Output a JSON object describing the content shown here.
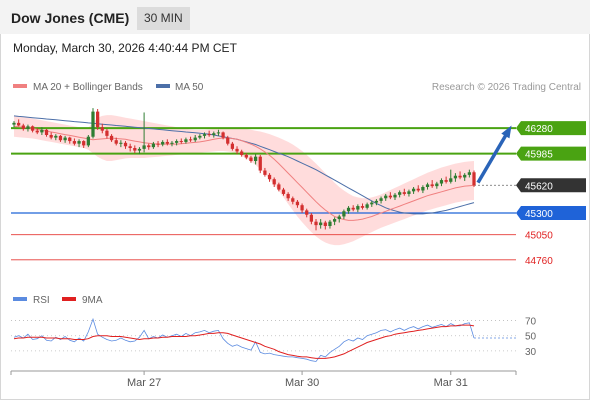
{
  "header": {
    "instrument": "Dow Jones (CME)",
    "timeframe": "30 MIN",
    "datetime": "Monday, March 30, 2026 4:40:44 PM CET"
  },
  "legend": {
    "ma20_label": "MA 20 + Bollinger Bands",
    "ma50_label": "MA 50",
    "credit": "Research © 2026 Trading Central"
  },
  "rsi_legend": {
    "rsi_label": "RSI",
    "ma_label": "9MA"
  },
  "colors": {
    "green": "#4aa312",
    "blue": "#1f63d8",
    "red": "#e53935",
    "candle_red": "#d32f2f",
    "candle_green": "#2e7d32",
    "band": "#ffd6d6",
    "ma20": "#f08080",
    "ma50": "#4c6fa8",
    "rsi": "#5b8be0",
    "rsi_ma": "#e02020",
    "arrow": "#2a64b8",
    "last": "#333333"
  },
  "chart_data": {
    "type": "candlestick",
    "x_ticks": [
      "Mar 27",
      "Mar 30",
      "Mar 31"
    ],
    "price_range": [
      44550,
      46650
    ],
    "levels": [
      {
        "value": 46280,
        "label": "46280",
        "style": "resistance"
      },
      {
        "value": 45985,
        "label": "45985",
        "style": "resistance"
      },
      {
        "value": 45620,
        "label": "45620",
        "style": "last"
      },
      {
        "value": 45300,
        "label": "45300",
        "style": "pivot"
      },
      {
        "value": 45050,
        "label": "45050",
        "style": "support"
      },
      {
        "value": 44760,
        "label": "44760",
        "style": "support"
      }
    ],
    "candles": [
      [
        46320,
        46360,
        46290,
        46340
      ],
      [
        46340,
        46380,
        46300,
        46310
      ],
      [
        46310,
        46330,
        46250,
        46270
      ],
      [
        46270,
        46320,
        46240,
        46300
      ],
      [
        46300,
        46310,
        46230,
        46250
      ],
      [
        46250,
        46280,
        46210,
        46230
      ],
      [
        46230,
        46290,
        46200,
        46260
      ],
      [
        46260,
        46270,
        46180,
        46200
      ],
      [
        46200,
        46230,
        46150,
        46170
      ],
      [
        46170,
        46210,
        46140,
        46190
      ],
      [
        46190,
        46200,
        46120,
        46140
      ],
      [
        46140,
        46190,
        46110,
        46170
      ],
      [
        46170,
        46180,
        46100,
        46130
      ],
      [
        46130,
        46160,
        46080,
        46100
      ],
      [
        46100,
        46150,
        46060,
        46130
      ],
      [
        46130,
        46140,
        46050,
        46080
      ],
      [
        46080,
        46200,
        46060,
        46180
      ],
      [
        46180,
        46510,
        46160,
        46470
      ],
      [
        46470,
        46500,
        46260,
        46290
      ],
      [
        46290,
        46330,
        46220,
        46250
      ],
      [
        46250,
        46270,
        46160,
        46190
      ],
      [
        46190,
        46210,
        46120,
        46140
      ],
      [
        46140,
        46170,
        46080,
        46100
      ],
      [
        46100,
        46140,
        46060,
        46110
      ],
      [
        46110,
        46130,
        46040,
        46070
      ],
      [
        46070,
        46100,
        46010,
        46050
      ],
      [
        46050,
        46080,
        45990,
        46020
      ],
      [
        46020,
        46060,
        45980,
        46040
      ],
      [
        46040,
        46460,
        46000,
        46080
      ],
      [
        46080,
        46100,
        46030,
        46060
      ],
      [
        46060,
        46120,
        46040,
        46100
      ],
      [
        46100,
        46130,
        46060,
        46090
      ],
      [
        46090,
        46140,
        46070,
        46120
      ],
      [
        46120,
        46150,
        46080,
        46100
      ],
      [
        46100,
        46130,
        46070,
        46110
      ],
      [
        46110,
        46150,
        46080,
        46130
      ],
      [
        46130,
        46160,
        46100,
        46120
      ],
      [
        46120,
        46170,
        46100,
        46150
      ],
      [
        46150,
        46180,
        46120,
        46140
      ],
      [
        46140,
        46200,
        46120,
        46170
      ],
      [
        46170,
        46210,
        46150,
        46190
      ],
      [
        46190,
        46230,
        46160,
        46210
      ],
      [
        46210,
        46250,
        46180,
        46200
      ],
      [
        46200,
        46240,
        46170,
        46220
      ],
      [
        46220,
        46260,
        46190,
        46230
      ],
      [
        46230,
        46240,
        46150,
        46170
      ],
      [
        46170,
        46190,
        46080,
        46100
      ],
      [
        46100,
        46120,
        46020,
        46040
      ],
      [
        46040,
        46070,
        45980,
        46010
      ],
      [
        46010,
        46030,
        45950,
        45970
      ],
      [
        45970,
        45990,
        45920,
        45940
      ],
      [
        45940,
        45960,
        45880,
        45900
      ],
      [
        45900,
        45980,
        45860,
        45950
      ],
      [
        45950,
        45970,
        45760,
        45790
      ],
      [
        45790,
        45820,
        45720,
        45740
      ],
      [
        45740,
        45760,
        45660,
        45690
      ],
      [
        45690,
        45710,
        45600,
        45630
      ],
      [
        45630,
        45650,
        45550,
        45570
      ],
      [
        45570,
        45590,
        45500,
        45520
      ],
      [
        45520,
        45540,
        45440,
        45470
      ],
      [
        45470,
        45490,
        45400,
        45430
      ],
      [
        45430,
        45450,
        45360,
        45390
      ],
      [
        45390,
        45410,
        45300,
        45330
      ],
      [
        45330,
        45350,
        45250,
        45280
      ],
      [
        45280,
        45300,
        45170,
        45200
      ],
      [
        45200,
        45230,
        45100,
        45160
      ],
      [
        45160,
        45230,
        45120,
        45190
      ],
      [
        45190,
        45210,
        45110,
        45150
      ],
      [
        45150,
        45220,
        45120,
        45200
      ],
      [
        45200,
        45250,
        45160,
        45230
      ],
      [
        45230,
        45280,
        45190,
        45260
      ],
      [
        45260,
        45340,
        45230,
        45320
      ],
      [
        45320,
        45380,
        45290,
        45360
      ],
      [
        45360,
        45390,
        45320,
        45340
      ],
      [
        45340,
        45400,
        45310,
        45380
      ],
      [
        45380,
        45410,
        45340,
        45360
      ],
      [
        45360,
        45420,
        45340,
        45400
      ],
      [
        45400,
        45440,
        45370,
        45420
      ],
      [
        45420,
        45460,
        45390,
        45440
      ],
      [
        45440,
        45490,
        45410,
        45470
      ],
      [
        45470,
        45520,
        45440,
        45500
      ],
      [
        45500,
        45540,
        45460,
        45480
      ],
      [
        45480,
        45530,
        45450,
        45510
      ],
      [
        45510,
        45560,
        45480,
        45540
      ],
      [
        45540,
        45580,
        45500,
        45520
      ],
      [
        45520,
        45570,
        45490,
        45550
      ],
      [
        45550,
        45600,
        45520,
        45580
      ],
      [
        45580,
        45620,
        45540,
        45560
      ],
      [
        45560,
        45620,
        45530,
        45600
      ],
      [
        45600,
        45650,
        45570,
        45630
      ],
      [
        45630,
        45680,
        45590,
        45610
      ],
      [
        45610,
        45660,
        45580,
        45640
      ],
      [
        45640,
        45700,
        45610,
        45680
      ],
      [
        45680,
        45720,
        45640,
        45660
      ],
      [
        45660,
        45800,
        45640,
        45700
      ],
      [
        45700,
        45760,
        45660,
        45730
      ],
      [
        45730,
        45780,
        45690,
        45710
      ],
      [
        45710,
        45760,
        45670,
        45740
      ],
      [
        45740,
        45800,
        45710,
        45770
      ],
      [
        45770,
        45790,
        45600,
        45620
      ]
    ],
    "ma20": [
      46300,
      46295,
      46290,
      46285,
      46275,
      46265,
      46255,
      46245,
      46235,
      46225,
      46215,
      46205,
      46195,
      46185,
      46175,
      46165,
      46155,
      46145,
      46150,
      46155,
      46160,
      46165,
      46160,
      46155,
      46150,
      46140,
      46130,
      46120,
      46110,
      46105,
      46100,
      46095,
      46095,
      46095,
      46095,
      46095,
      46100,
      46105,
      46110,
      46115,
      46120,
      46130,
      46140,
      46150,
      46160,
      46165,
      46165,
      46160,
      46150,
      46135,
      46115,
      46095,
      46070,
      46040,
      46005,
      45965,
      45920,
      45870,
      45815,
      45760,
      45705,
      45650,
      45595,
      45540,
      45485,
      45430,
      45380,
      45335,
      45295,
      45260,
      45240,
      45225,
      45215,
      45215,
      45220,
      45230,
      45245,
      45260,
      45280,
      45300,
      45320,
      45340,
      45360,
      45380,
      45400,
      45420,
      45440,
      45460,
      45480,
      45500,
      45515,
      45530,
      45545,
      45560,
      45575,
      45590,
      45600,
      45610,
      45615,
      45620
    ],
    "bb_upper": [
      46420,
      46415,
      46410,
      46400,
      46390,
      46380,
      46370,
      46360,
      46350,
      46340,
      46330,
      46320,
      46310,
      46300,
      46290,
      46280,
      46285,
      46340,
      46400,
      46420,
      46430,
      46430,
      46420,
      46410,
      46400,
      46390,
      46380,
      46370,
      46360,
      46350,
      46340,
      46330,
      46320,
      46310,
      46300,
      46290,
      46280,
      46270,
      46265,
      46260,
      46260,
      46260,
      46265,
      46270,
      46275,
      46280,
      46285,
      46285,
      46280,
      46275,
      46270,
      46260,
      46250,
      46240,
      46225,
      46210,
      46190,
      46170,
      46145,
      46120,
      46090,
      46055,
      46015,
      45970,
      45920,
      45870,
      45815,
      45760,
      45705,
      45650,
      45600,
      45560,
      45525,
      45495,
      45480,
      45470,
      45470,
      45480,
      45495,
      45515,
      45540,
      45565,
      45590,
      45615,
      45640,
      45665,
      45690,
      45715,
      45740,
      45765,
      45785,
      45805,
      45825,
      45840,
      45855,
      45870,
      45880,
      45890,
      45895,
      45900
    ],
    "bb_lower": [
      46180,
      46175,
      46170,
      46165,
      46160,
      46150,
      46140,
      46130,
      46120,
      46110,
      46100,
      46090,
      46080,
      46070,
      46060,
      46050,
      46030,
      45990,
      45950,
      45920,
      45900,
      45900,
      45910,
      45920,
      45930,
      45935,
      45935,
      45935,
      45935,
      45940,
      45945,
      45950,
      45955,
      45960,
      45965,
      45970,
      45975,
      45980,
      45985,
      45990,
      45995,
      46000,
      46005,
      46010,
      46015,
      46015,
      46010,
      46000,
      45985,
      45960,
      45930,
      45895,
      45855,
      45805,
      45750,
      45690,
      45625,
      45555,
      45480,
      45405,
      45330,
      45260,
      45195,
      45135,
      45080,
      45030,
      44990,
      44960,
      44940,
      44930,
      44930,
      44940,
      44955,
      44975,
      45000,
      45025,
      45055,
      45080,
      45105,
      45130,
      45150,
      45170,
      45190,
      45210,
      45230,
      45250,
      45270,
      45290,
      45310,
      45330,
      45345,
      45360,
      45375,
      45390,
      45405,
      45420,
      45430,
      45440,
      45445,
      45450
    ],
    "ma50": [
      46420,
      46415,
      46410,
      46405,
      46400,
      46395,
      46390,
      46385,
      46380,
      46375,
      46370,
      46365,
      46360,
      46355,
      46350,
      46345,
      46340,
      46335,
      46330,
      46325,
      46320,
      46315,
      46310,
      46305,
      46300,
      46295,
      46290,
      46285,
      46280,
      46275,
      46270,
      46265,
      46260,
      46255,
      46250,
      46245,
      46240,
      46235,
      46230,
      46225,
      46220,
      46215,
      46210,
      46200,
      46190,
      46180,
      46170,
      46160,
      46150,
      46135,
      46120,
      46105,
      46090,
      46070,
      46050,
      46030,
      46010,
      45990,
      45970,
      45950,
      45925,
      45900,
      45875,
      45850,
      45825,
      45800,
      45770,
      45740,
      45710,
      45680,
      45650,
      45620,
      45590,
      45560,
      45530,
      45500,
      45470,
      45440,
      45410,
      45385,
      45360,
      45340,
      45325,
      45310,
      45300,
      45295,
      45290,
      45290,
      45290,
      45295,
      45300,
      45310,
      45320,
      45330,
      45345,
      45360,
      45375,
      45390,
      45405,
      45420
    ],
    "rsi_ticks": [
      70,
      50,
      30
    ],
    "rsi": [
      48,
      50,
      47,
      52,
      45,
      46,
      50,
      44,
      43,
      48,
      45,
      49,
      44,
      42,
      47,
      43,
      55,
      72,
      52,
      48,
      45,
      43,
      44,
      47,
      44,
      42,
      43,
      48,
      57,
      46,
      49,
      47,
      51,
      48,
      50,
      52,
      49,
      53,
      50,
      54,
      55,
      57,
      54,
      56,
      57,
      46,
      40,
      36,
      38,
      35,
      33,
      31,
      42,
      28,
      26,
      27,
      25,
      24,
      23,
      22,
      22,
      21,
      20,
      19,
      17,
      16,
      24,
      22,
      28,
      32,
      36,
      42,
      45,
      43,
      47,
      45,
      50,
      52,
      54,
      57,
      58,
      55,
      58,
      60,
      57,
      60,
      62,
      59,
      62,
      64,
      61,
      63,
      65,
      62,
      66,
      63,
      63,
      66,
      67,
      47
    ],
    "rsi_ma": [
      46,
      47,
      47,
      48,
      48,
      48,
      48,
      47,
      47,
      47,
      46,
      46,
      46,
      45,
      45,
      45,
      46,
      49,
      50,
      50,
      50,
      49,
      49,
      49,
      48,
      47,
      46,
      45,
      46,
      46,
      47,
      47,
      48,
      48,
      49,
      49,
      49,
      49,
      50,
      50,
      51,
      52,
      53,
      53,
      54,
      54,
      53,
      51,
      49,
      47,
      45,
      43,
      41,
      39,
      36,
      34,
      32,
      29,
      27,
      25,
      24,
      23,
      22,
      22,
      21,
      20,
      20,
      20,
      21,
      22,
      24,
      26,
      29,
      32,
      35,
      38,
      41,
      43,
      45,
      47,
      49,
      50,
      52,
      53,
      54,
      55,
      56,
      57,
      58,
      59,
      60,
      61,
      62,
      62,
      63,
      63,
      64,
      64,
      64,
      63
    ]
  }
}
